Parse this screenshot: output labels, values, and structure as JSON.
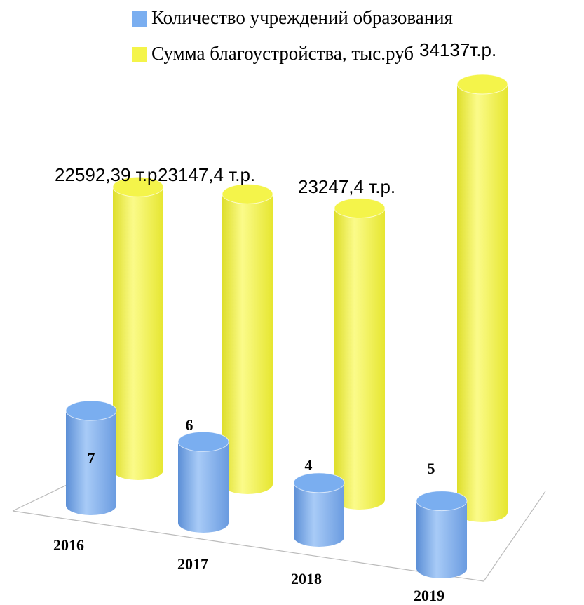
{
  "chart_data": {
    "type": "cylinder3d",
    "categories": [
      "2016",
      "2017",
      "2018",
      "2019"
    ],
    "series": [
      {
        "name": "Количество учреждений образования",
        "color": "#7aaef0",
        "axis": "y2",
        "values": [
          7,
          6,
          4,
          5
        ]
      },
      {
        "name": "Сумма благоустройства, тыс.руб",
        "color": "#f4f44a",
        "values": [
          22592.39,
          23147.4,
          23247.4,
          34137
        ],
        "value_labels": [
          "22592,39 т.р.",
          "23147,4 т.р.",
          "23247,4 т.р.",
          "34137т.р."
        ]
      }
    ]
  }
}
